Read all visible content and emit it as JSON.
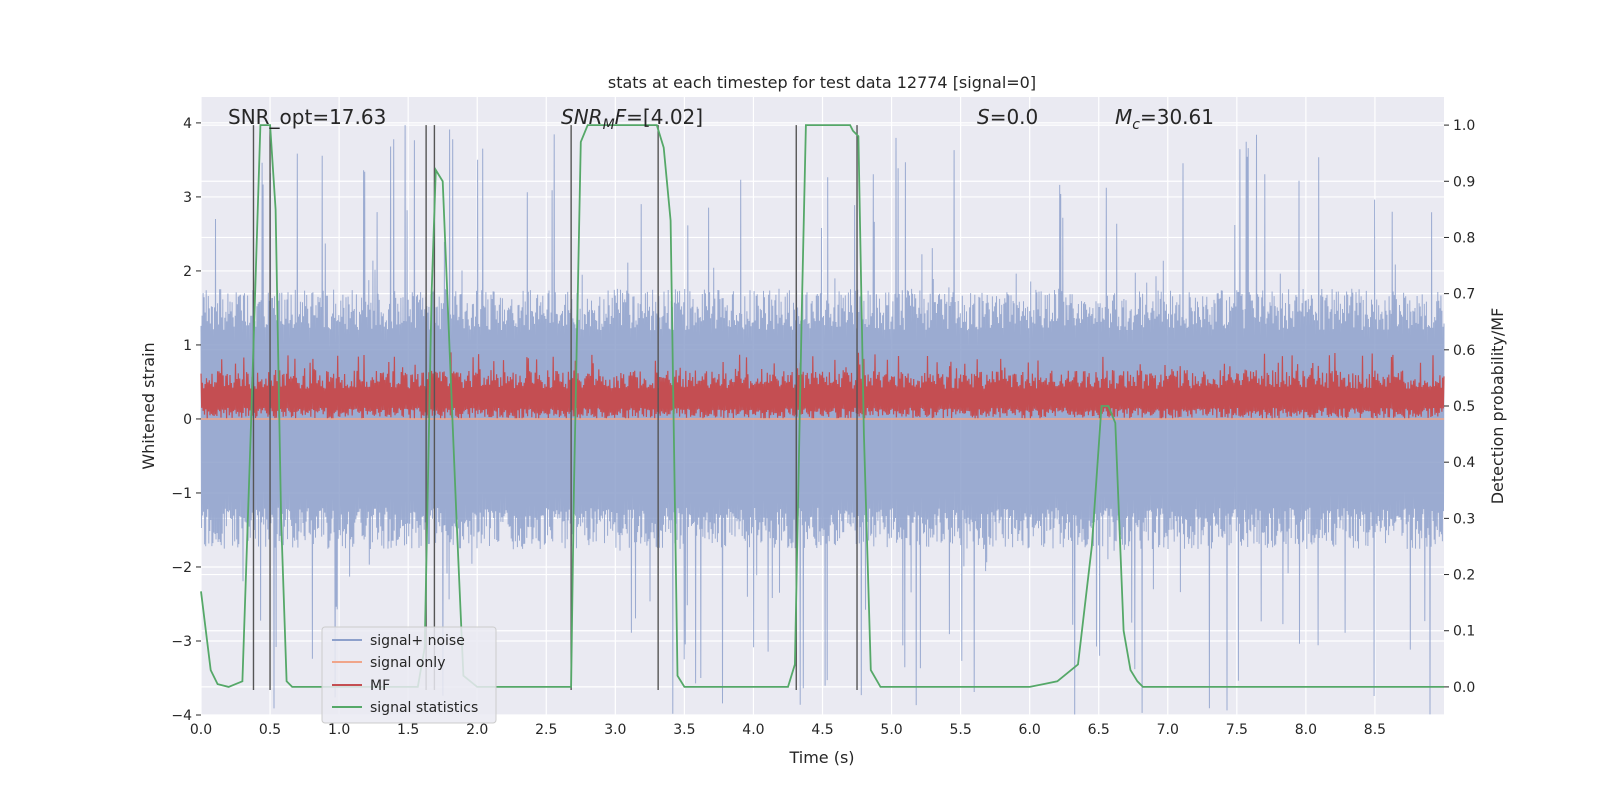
{
  "chart_data": {
    "type": "line",
    "title": "stats at each timestep for test data 12774 [signal=0]",
    "xlabel": "Time (s)",
    "ylabel_left": "Whitened strain",
    "ylabel_right": "Detection probability/MF",
    "xlim": [
      0,
      9
    ],
    "ylim_left": [
      -4,
      4.35
    ],
    "ylim_right": [
      -0.05,
      1.05
    ],
    "x_ticks": [
      "0.0",
      "0.5",
      "1.0",
      "1.5",
      "2.0",
      "2.5",
      "3.0",
      "3.5",
      "4.0",
      "4.5",
      "5.0",
      "5.5",
      "6.0",
      "6.5",
      "7.0",
      "7.5",
      "8.0",
      "8.5"
    ],
    "y_ticks_left": [
      "−4",
      "−3",
      "−2",
      "−1",
      "0",
      "1",
      "2",
      "3",
      "4"
    ],
    "y_ticks_right": [
      "0.0",
      "0.1",
      "0.2",
      "0.3",
      "0.4",
      "0.5",
      "0.6",
      "0.7",
      "0.8",
      "0.9",
      "1.0"
    ],
    "grid": true,
    "legend_position": "lower-left",
    "annotations": {
      "snr_opt": "SNR_opt=17.63",
      "snr_mf_sym": "SNR",
      "snr_mf_sub": "M",
      "snr_mf_mid": "F",
      "snr_mf_val": "=[4.02]",
      "s_sym": "S",
      "s_val": "=0.0",
      "mc_sym": "M",
      "mc_sub": "c",
      "mc_val": "=30.61"
    },
    "series": [
      {
        "name": "signal+ noise",
        "color": "#8da0cb",
        "axis": "left",
        "kind": "noise",
        "envelope_typical": 1.6,
        "envelope_max": 4.0
      },
      {
        "name": "signal only",
        "color": "#f0a58a",
        "axis": "left",
        "kind": "flat",
        "value": 0.0
      },
      {
        "name": "MF",
        "color": "#c44e52",
        "axis": "left",
        "kind": "band",
        "low": 0.0,
        "high": 0.9
      },
      {
        "name": "signal statistics",
        "color": "#55a868",
        "axis": "right",
        "kind": "line",
        "x": [
          0.0,
          0.07,
          0.12,
          0.2,
          0.3,
          0.3,
          0.36,
          0.43,
          0.45,
          0.5,
          0.54,
          0.58,
          0.62,
          0.66,
          0.7,
          1.57,
          1.62,
          1.67,
          1.7,
          1.75,
          1.8,
          1.85,
          1.9,
          2.0,
          2.1,
          2.68,
          2.7,
          2.75,
          2.8,
          2.9,
          3.0,
          3.1,
          3.2,
          3.3,
          3.35,
          3.4,
          3.45,
          3.5,
          4.25,
          4.3,
          4.35,
          4.38,
          4.4,
          4.5,
          4.6,
          4.7,
          4.72,
          4.76,
          4.8,
          4.85,
          4.92,
          5.0,
          5.5,
          6.0,
          6.1,
          6.2,
          6.25,
          6.35,
          6.45,
          6.52,
          6.57,
          6.62,
          6.68,
          6.73,
          6.78,
          6.82,
          6.86,
          7.0,
          8.5,
          9.0
        ],
        "y": [
          0.17,
          0.03,
          0.005,
          0.0,
          0.01,
          0.01,
          0.45,
          1.0,
          1.0,
          1.0,
          0.85,
          0.3,
          0.01,
          0.0,
          0.0,
          0.0,
          0.07,
          0.7,
          0.92,
          0.9,
          0.6,
          0.3,
          0.02,
          0.0,
          0.0,
          0.0,
          0.35,
          0.97,
          1.0,
          1.0,
          1.0,
          1.0,
          1.0,
          1.0,
          0.96,
          0.83,
          0.02,
          0.0,
          0.0,
          0.04,
          0.67,
          1.0,
          1.0,
          1.0,
          1.0,
          1.0,
          0.99,
          0.98,
          0.45,
          0.03,
          0.0,
          0.0,
          0.0,
          0.0,
          0.005,
          0.01,
          0.02,
          0.04,
          0.25,
          0.5,
          0.5,
          0.47,
          0.1,
          0.03,
          0.01,
          0.0,
          0.0,
          0.0,
          0.0,
          0.0
        ]
      }
    ],
    "vertical_markers": [
      0.38,
      0.5,
      1.63,
      1.69,
      2.68,
      3.31,
      4.31,
      4.75
    ]
  }
}
